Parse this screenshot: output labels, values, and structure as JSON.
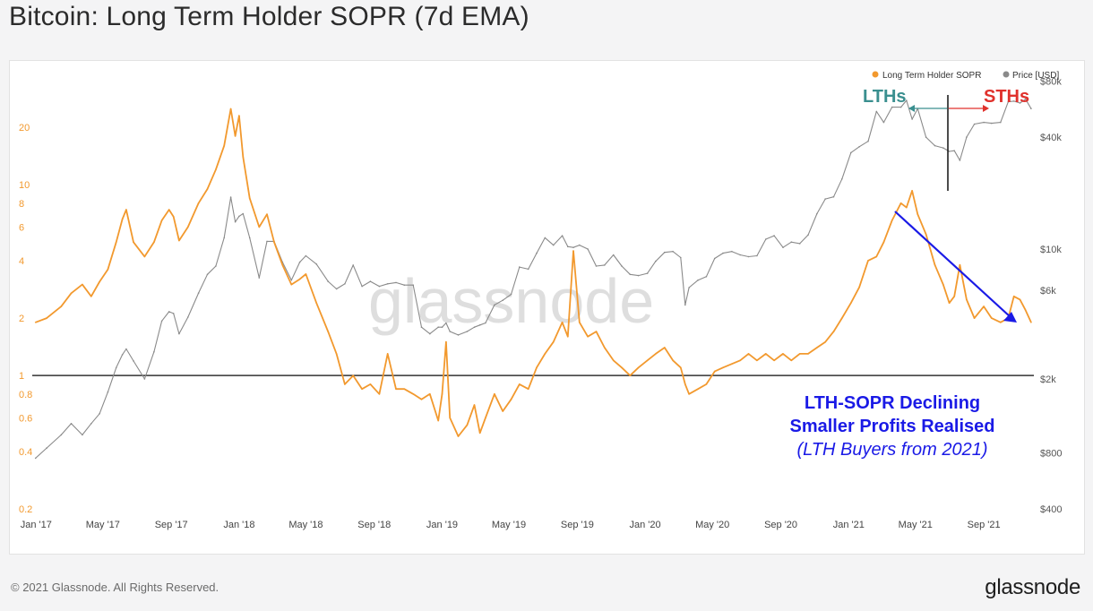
{
  "title": "Bitcoin: Long Term Holder SOPR (7d EMA)",
  "footer": {
    "copyright": "© 2021 Glassnode. All Rights Reserved.",
    "brand": "glassnode"
  },
  "watermark": "glassnode",
  "colors": {
    "sopr": "#f2992e",
    "price": "#8a8a8a",
    "reference": "#333333",
    "lth": "#3a8f8f",
    "sth": "#e0312c",
    "annotation": "#1a1ae6"
  },
  "annotations": {
    "lths": "LTHs",
    "sths": "STHs",
    "line1": "LTH-SOPR Declining",
    "line2": "Smaller Profits  Realised",
    "line3": "(LTH Buyers from 2021)"
  },
  "chart_data": {
    "type": "line",
    "title": "Bitcoin: Long Term Holder SOPR (7d EMA)",
    "x_range": [
      "2016-12-25",
      "2021-11-30"
    ],
    "x_ticks": [
      "Jan '17",
      "May '17",
      "Sep '17",
      "Jan '18",
      "May '18",
      "Sep '18",
      "Jan '19",
      "May '19",
      "Sep '19",
      "Jan '20",
      "May '20",
      "Sep '20",
      "Jan '21",
      "May '21",
      "Sep '21"
    ],
    "y_left": {
      "scale": "log",
      "range": [
        0.2,
        40
      ],
      "ticks": [
        "0.2",
        "0.4",
        "0.6",
        "0.8",
        "1",
        "2",
        "4",
        "6",
        "8",
        "10",
        "20"
      ]
    },
    "y_right": {
      "scale": "log",
      "range": [
        400,
        90000
      ],
      "ticks": [
        "$400",
        "$800",
        "$2k",
        "$6k",
        "$10k",
        "$40k",
        "$80k"
      ]
    },
    "legend": {
      "position": "top-right",
      "items": [
        "Long Term Holder SOPR",
        "Price [USD]"
      ]
    },
    "reference_line": {
      "axis": "left",
      "value": 1
    },
    "series": [
      {
        "name": "Long Term Holder SOPR",
        "axis": "left",
        "points": [
          [
            "2016-12-31",
            1.9
          ],
          [
            "2017-01-20",
            2.0
          ],
          [
            "2017-02-15",
            2.3
          ],
          [
            "2017-03-05",
            2.7
          ],
          [
            "2017-03-25",
            3.0
          ],
          [
            "2017-04-10",
            2.6
          ],
          [
            "2017-04-25",
            3.1
          ],
          [
            "2017-05-10",
            3.6
          ],
          [
            "2017-05-25",
            5.0
          ],
          [
            "2017-06-05",
            6.6
          ],
          [
            "2017-06-12",
            7.4
          ],
          [
            "2017-06-25",
            5.0
          ],
          [
            "2017-07-15",
            4.2
          ],
          [
            "2017-08-01",
            5.0
          ],
          [
            "2017-08-15",
            6.5
          ],
          [
            "2017-08-28",
            7.4
          ],
          [
            "2017-09-05",
            6.8
          ],
          [
            "2017-09-15",
            5.1
          ],
          [
            "2017-10-01",
            6.0
          ],
          [
            "2017-10-20",
            8.0
          ],
          [
            "2017-11-05",
            9.5
          ],
          [
            "2017-11-20",
            12.0
          ],
          [
            "2017-12-05",
            16.0
          ],
          [
            "2017-12-17",
            25.0
          ],
          [
            "2017-12-25",
            18.0
          ],
          [
            "2018-01-01",
            23.0
          ],
          [
            "2018-01-08",
            14.0
          ],
          [
            "2018-01-20",
            8.5
          ],
          [
            "2018-02-06",
            6.0
          ],
          [
            "2018-02-20",
            7.0
          ],
          [
            "2018-03-05",
            5.0
          ],
          [
            "2018-03-20",
            3.8
          ],
          [
            "2018-04-05",
            3.0
          ],
          [
            "2018-04-20",
            3.2
          ],
          [
            "2018-05-01",
            3.4
          ],
          [
            "2018-05-20",
            2.4
          ],
          [
            "2018-06-10",
            1.7
          ],
          [
            "2018-06-25",
            1.3
          ],
          [
            "2018-07-10",
            0.9
          ],
          [
            "2018-07-25",
            1.0
          ],
          [
            "2018-08-10",
            0.85
          ],
          [
            "2018-08-25",
            0.9
          ],
          [
            "2018-09-10",
            0.8
          ],
          [
            "2018-09-25",
            1.3
          ],
          [
            "2018-10-10",
            0.85
          ],
          [
            "2018-10-25",
            0.85
          ],
          [
            "2018-11-10",
            0.8
          ],
          [
            "2018-11-25",
            0.75
          ],
          [
            "2018-12-10",
            0.8
          ],
          [
            "2018-12-25",
            0.58
          ],
          [
            "2019-01-01",
            0.8
          ],
          [
            "2019-01-08",
            1.5
          ],
          [
            "2019-01-15",
            0.6
          ],
          [
            "2019-01-30",
            0.48
          ],
          [
            "2019-02-15",
            0.55
          ],
          [
            "2019-02-28",
            0.7
          ],
          [
            "2019-03-10",
            0.5
          ],
          [
            "2019-03-20",
            0.6
          ],
          [
            "2019-04-05",
            0.8
          ],
          [
            "2019-04-20",
            0.65
          ],
          [
            "2019-05-05",
            0.75
          ],
          [
            "2019-05-20",
            0.9
          ],
          [
            "2019-06-05",
            0.85
          ],
          [
            "2019-06-20",
            1.1
          ],
          [
            "2019-07-05",
            1.3
          ],
          [
            "2019-07-20",
            1.5
          ],
          [
            "2019-08-05",
            1.9
          ],
          [
            "2019-08-15",
            1.6
          ],
          [
            "2019-08-25",
            4.5
          ],
          [
            "2019-09-05",
            1.9
          ],
          [
            "2019-09-20",
            1.6
          ],
          [
            "2019-10-05",
            1.7
          ],
          [
            "2019-10-20",
            1.4
          ],
          [
            "2019-11-05",
            1.2
          ],
          [
            "2019-11-20",
            1.1
          ],
          [
            "2019-12-05",
            1.0
          ],
          [
            "2019-12-20",
            1.1
          ],
          [
            "2020-01-05",
            1.2
          ],
          [
            "2020-01-20",
            1.3
          ],
          [
            "2020-02-05",
            1.4
          ],
          [
            "2020-02-20",
            1.2
          ],
          [
            "2020-03-05",
            1.1
          ],
          [
            "2020-03-13",
            0.9
          ],
          [
            "2020-03-20",
            0.8
          ],
          [
            "2020-04-05",
            0.85
          ],
          [
            "2020-04-20",
            0.9
          ],
          [
            "2020-05-05",
            1.05
          ],
          [
            "2020-05-20",
            1.1
          ],
          [
            "2020-06-05",
            1.15
          ],
          [
            "2020-06-20",
            1.2
          ],
          [
            "2020-07-05",
            1.3
          ],
          [
            "2020-07-20",
            1.2
          ],
          [
            "2020-08-05",
            1.3
          ],
          [
            "2020-08-20",
            1.2
          ],
          [
            "2020-09-05",
            1.3
          ],
          [
            "2020-09-20",
            1.2
          ],
          [
            "2020-10-05",
            1.3
          ],
          [
            "2020-10-20",
            1.3
          ],
          [
            "2020-11-05",
            1.4
          ],
          [
            "2020-11-20",
            1.5
          ],
          [
            "2020-12-05",
            1.7
          ],
          [
            "2020-12-20",
            2.0
          ],
          [
            "2021-01-05",
            2.4
          ],
          [
            "2021-01-20",
            2.9
          ],
          [
            "2021-02-05",
            4.0
          ],
          [
            "2021-02-20",
            4.2
          ],
          [
            "2021-03-05",
            5.0
          ],
          [
            "2021-03-20",
            6.5
          ],
          [
            "2021-04-05",
            8.0
          ],
          [
            "2021-04-15",
            7.6
          ],
          [
            "2021-04-25",
            9.3
          ],
          [
            "2021-05-05",
            7.0
          ],
          [
            "2021-05-20",
            5.5
          ],
          [
            "2021-06-05",
            3.8
          ],
          [
            "2021-06-20",
            3.0
          ],
          [
            "2021-07-01",
            2.4
          ],
          [
            "2021-07-10",
            2.6
          ],
          [
            "2021-07-20",
            3.8
          ],
          [
            "2021-08-01",
            2.5
          ],
          [
            "2021-08-15",
            2.0
          ],
          [
            "2021-09-01",
            2.3
          ],
          [
            "2021-09-15",
            2.0
          ],
          [
            "2021-10-01",
            1.9
          ],
          [
            "2021-10-15",
            2.0
          ],
          [
            "2021-10-25",
            2.6
          ],
          [
            "2021-11-05",
            2.5
          ],
          [
            "2021-11-15",
            2.2
          ],
          [
            "2021-11-25",
            1.9
          ]
        ]
      },
      {
        "name": "Price [USD]",
        "axis": "right",
        "points": [
          [
            "2016-12-31",
            750
          ],
          [
            "2017-01-20",
            850
          ],
          [
            "2017-02-15",
            1000
          ],
          [
            "2017-03-05",
            1150
          ],
          [
            "2017-03-25",
            1000
          ],
          [
            "2017-04-10",
            1150
          ],
          [
            "2017-04-25",
            1300
          ],
          [
            "2017-05-10",
            1700
          ],
          [
            "2017-05-25",
            2300
          ],
          [
            "2017-06-05",
            2700
          ],
          [
            "2017-06-12",
            2900
          ],
          [
            "2017-06-25",
            2500
          ],
          [
            "2017-07-15",
            2000
          ],
          [
            "2017-08-01",
            2800
          ],
          [
            "2017-08-15",
            4100
          ],
          [
            "2017-08-28",
            4600
          ],
          [
            "2017-09-05",
            4500
          ],
          [
            "2017-09-15",
            3500
          ],
          [
            "2017-10-01",
            4300
          ],
          [
            "2017-10-20",
            5800
          ],
          [
            "2017-11-05",
            7300
          ],
          [
            "2017-11-20",
            8100
          ],
          [
            "2017-12-05",
            11500
          ],
          [
            "2017-12-17",
            19000
          ],
          [
            "2017-12-25",
            14000
          ],
          [
            "2018-01-01",
            15000
          ],
          [
            "2018-01-08",
            15500
          ],
          [
            "2018-01-20",
            11500
          ],
          [
            "2018-02-06",
            7000
          ],
          [
            "2018-02-20",
            11000
          ],
          [
            "2018-03-05",
            11000
          ],
          [
            "2018-03-20",
            8500
          ],
          [
            "2018-04-05",
            6800
          ],
          [
            "2018-04-20",
            8500
          ],
          [
            "2018-05-01",
            9200
          ],
          [
            "2018-05-20",
            8300
          ],
          [
            "2018-06-10",
            6700
          ],
          [
            "2018-06-25",
            6100
          ],
          [
            "2018-07-10",
            6500
          ],
          [
            "2018-07-25",
            8200
          ],
          [
            "2018-08-10",
            6300
          ],
          [
            "2018-08-25",
            6700
          ],
          [
            "2018-09-10",
            6300
          ],
          [
            "2018-09-25",
            6500
          ],
          [
            "2018-10-10",
            6600
          ],
          [
            "2018-10-25",
            6400
          ],
          [
            "2018-11-10",
            6400
          ],
          [
            "2018-11-25",
            3800
          ],
          [
            "2018-12-10",
            3500
          ],
          [
            "2018-12-25",
            3800
          ],
          [
            "2019-01-01",
            3800
          ],
          [
            "2019-01-08",
            4000
          ],
          [
            "2019-01-15",
            3600
          ],
          [
            "2019-01-30",
            3450
          ],
          [
            "2019-02-15",
            3600
          ],
          [
            "2019-02-28",
            3800
          ],
          [
            "2019-03-10",
            3900
          ],
          [
            "2019-03-20",
            4000
          ],
          [
            "2019-04-05",
            5000
          ],
          [
            "2019-04-20",
            5300
          ],
          [
            "2019-05-05",
            5700
          ],
          [
            "2019-05-20",
            8000
          ],
          [
            "2019-06-05",
            7800
          ],
          [
            "2019-06-20",
            9500
          ],
          [
            "2019-07-05",
            11500
          ],
          [
            "2019-07-20",
            10500
          ],
          [
            "2019-08-05",
            11800
          ],
          [
            "2019-08-15",
            10300
          ],
          [
            "2019-08-25",
            10200
          ],
          [
            "2019-09-05",
            10500
          ],
          [
            "2019-09-20",
            10000
          ],
          [
            "2019-10-05",
            8100
          ],
          [
            "2019-10-20",
            8200
          ],
          [
            "2019-11-05",
            9300
          ],
          [
            "2019-11-20",
            8100
          ],
          [
            "2019-12-05",
            7300
          ],
          [
            "2019-12-20",
            7200
          ],
          [
            "2020-01-05",
            7400
          ],
          [
            "2020-01-20",
            8600
          ],
          [
            "2020-02-05",
            9600
          ],
          [
            "2020-02-20",
            9700
          ],
          [
            "2020-03-05",
            9000
          ],
          [
            "2020-03-13",
            5000
          ],
          [
            "2020-03-20",
            6200
          ],
          [
            "2020-04-05",
            6800
          ],
          [
            "2020-04-20",
            7100
          ],
          [
            "2020-05-05",
            8900
          ],
          [
            "2020-05-20",
            9500
          ],
          [
            "2020-06-05",
            9700
          ],
          [
            "2020-06-20",
            9300
          ],
          [
            "2020-07-05",
            9100
          ],
          [
            "2020-07-20",
            9200
          ],
          [
            "2020-08-05",
            11300
          ],
          [
            "2020-08-20",
            11800
          ],
          [
            "2020-09-05",
            10200
          ],
          [
            "2020-09-20",
            10900
          ],
          [
            "2020-10-05",
            10700
          ],
          [
            "2020-10-20",
            11900
          ],
          [
            "2020-11-05",
            15500
          ],
          [
            "2020-11-20",
            18600
          ],
          [
            "2020-12-05",
            19100
          ],
          [
            "2020-12-20",
            23800
          ],
          [
            "2021-01-05",
            33000
          ],
          [
            "2021-01-20",
            35500
          ],
          [
            "2021-02-05",
            38000
          ],
          [
            "2021-02-20",
            55000
          ],
          [
            "2021-03-05",
            48000
          ],
          [
            "2021-03-20",
            58000
          ],
          [
            "2021-04-05",
            58000
          ],
          [
            "2021-04-15",
            63000
          ],
          [
            "2021-04-25",
            50000
          ],
          [
            "2021-05-05",
            57000
          ],
          [
            "2021-05-20",
            40000
          ],
          [
            "2021-06-05",
            36000
          ],
          [
            "2021-06-20",
            35000
          ],
          [
            "2021-07-01",
            33500
          ],
          [
            "2021-07-10",
            33800
          ],
          [
            "2021-07-20",
            30000
          ],
          [
            "2021-08-01",
            40000
          ],
          [
            "2021-08-15",
            47000
          ],
          [
            "2021-09-01",
            48000
          ],
          [
            "2021-09-15",
            47500
          ],
          [
            "2021-10-01",
            48000
          ],
          [
            "2021-10-15",
            62000
          ],
          [
            "2021-10-25",
            62500
          ],
          [
            "2021-11-05",
            61000
          ],
          [
            "2021-11-15",
            64000
          ],
          [
            "2021-11-25",
            57000
          ]
        ]
      }
    ]
  }
}
